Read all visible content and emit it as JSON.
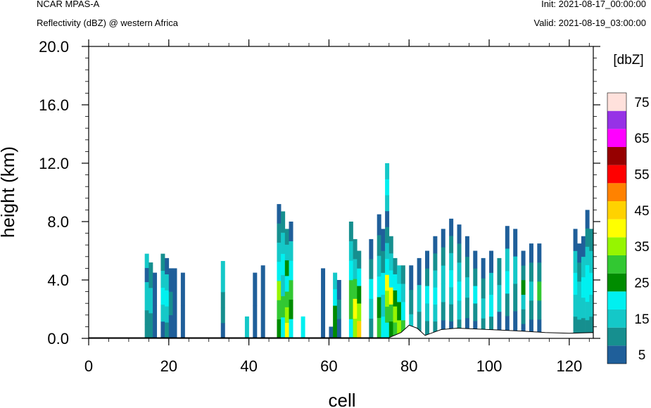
{
  "header": {
    "model": "NCAR MPAS-A",
    "field": "Reflectivity (dBZ) @ western Africa",
    "init": "Init: 2021-08-17_00:00:00",
    "valid": "Valid: 2021-08-19_03:00:00"
  },
  "chart_data": {
    "type": "heatmap",
    "xlabel": "cell",
    "ylabel": "height (km)",
    "xlim": [
      0,
      126
    ],
    "ylim": [
      0,
      20
    ],
    "xticks": [
      "0",
      "20",
      "40",
      "60",
      "80",
      "100",
      "120"
    ],
    "yticks": [
      "0.0",
      "4.0",
      "8.0",
      "12.0",
      "16.0",
      "20.0"
    ],
    "colorbar": {
      "unit": "[dbZ]",
      "labels": [
        "5",
        "15",
        "25",
        "35",
        "45",
        "55",
        "65",
        "75"
      ],
      "colors": [
        "#1f5f9a",
        "#168f8f",
        "#14c8c8",
        "#00f0f0",
        "#008c00",
        "#32c832",
        "#96f500",
        "#ffff00",
        "#ffd200",
        "#ff8200",
        "#ff0000",
        "#960000",
        "#ff00ff",
        "#9632e6",
        "#ffe1dc"
      ]
    },
    "columns": [
      {
        "x": 14,
        "top": 5.8,
        "lev": [
          1,
          1,
          2,
          2,
          0,
          2
        ]
      },
      {
        "x": 15,
        "top": 5.2,
        "lev": [
          1,
          2,
          1
        ]
      },
      {
        "x": 16,
        "top": 4.5,
        "lev": [
          0,
          0
        ]
      },
      {
        "x": 18,
        "top": 5.8,
        "lev": [
          0,
          2,
          3,
          2,
          1
        ]
      },
      {
        "x": 19,
        "top": 5.5,
        "lev": [
          1,
          2,
          3,
          2,
          0
        ]
      },
      {
        "x": 20,
        "top": 4.8,
        "lev": [
          0,
          1,
          0
        ]
      },
      {
        "x": 21,
        "top": 4.8,
        "lev": [
          0,
          0
        ]
      },
      {
        "x": 23,
        "top": 4.5,
        "lev": [
          0,
          0
        ]
      },
      {
        "x": 33,
        "top": 5.3,
        "lev": [
          0,
          1,
          1,
          2,
          2
        ]
      },
      {
        "x": 39,
        "top": 1.5,
        "lev": [
          2
        ]
      },
      {
        "x": 41,
        "top": 4.5,
        "lev": [
          0,
          0
        ]
      },
      {
        "x": 43,
        "top": 5.0,
        "lev": [
          0
        ]
      },
      {
        "x": 47,
        "top": 9.2,
        "lev": [
          4,
          5,
          6,
          3,
          2,
          1,
          0
        ]
      },
      {
        "x": 48,
        "top": 8.7,
        "lev": [
          3,
          5,
          2,
          3,
          2,
          1
        ]
      },
      {
        "x": 49,
        "top": 7.5,
        "lev": [
          7,
          6,
          5,
          3,
          4,
          2,
          1
        ]
      },
      {
        "x": 50,
        "top": 8.0,
        "lev": [
          3,
          4,
          5,
          3,
          2,
          0
        ]
      },
      {
        "x": 53,
        "top": 1.5,
        "lev": [
          3
        ]
      },
      {
        "x": 58,
        "top": 4.8,
        "lev": [
          0
        ]
      },
      {
        "x": 60,
        "top": 0.8,
        "lev": [
          0
        ]
      },
      {
        "x": 61,
        "top": 4.5,
        "lev": [
          4,
          4,
          3,
          2
        ]
      },
      {
        "x": 62,
        "top": 4.0,
        "lev": [
          0,
          1,
          0
        ]
      },
      {
        "x": 65,
        "top": 8.0,
        "lev": [
          3,
          5,
          5,
          3,
          2,
          1
        ]
      },
      {
        "x": 66,
        "top": 6.8,
        "lev": [
          6,
          7,
          5,
          2,
          1
        ]
      },
      {
        "x": 67,
        "top": 6.0,
        "lev": [
          8,
          6,
          4,
          3,
          1
        ]
      },
      {
        "x": 70,
        "top": 6.8,
        "lev": [
          1,
          2,
          3,
          1,
          0
        ]
      },
      {
        "x": 72,
        "top": 8.5,
        "lev": [
          5,
          4,
          3,
          2,
          1,
          0
        ]
      },
      {
        "x": 73,
        "top": 7.5,
        "lev": [
          3,
          2,
          3,
          1,
          0
        ]
      },
      {
        "x": 74,
        "top": 12.0,
        "lev": [
          3,
          5,
          6,
          7,
          3,
          2,
          1,
          0,
          2,
          3,
          2
        ]
      },
      {
        "x": 75,
        "top": 7.0,
        "lev": [
          4,
          5,
          7,
          3,
          2,
          1
        ]
      },
      {
        "x": 76,
        "top": 5.5,
        "lev": [
          5,
          6,
          4,
          3,
          1
        ]
      },
      {
        "x": 77,
        "top": 5.0,
        "lev": [
          6,
          4,
          3,
          2
        ]
      },
      {
        "x": 78,
        "top": 5.0,
        "lev": [
          5,
          3,
          2,
          1
        ]
      },
      {
        "x": 80,
        "top": 5.0,
        "lev": [
          2,
          1,
          0
        ]
      },
      {
        "x": 82,
        "top": 5.5,
        "lev": [
          1,
          2,
          0
        ]
      },
      {
        "x": 84,
        "top": 6.0,
        "lev": [
          1,
          2,
          3,
          1,
          0
        ]
      },
      {
        "x": 86,
        "top": 7.0,
        "lev": [
          1,
          2,
          3,
          2,
          1,
          0
        ]
      },
      {
        "x": 88,
        "top": 7.5,
        "lev": [
          0,
          1,
          2,
          2,
          1,
          0
        ]
      },
      {
        "x": 90,
        "top": 8.2,
        "lev": [
          0,
          1,
          2,
          3,
          2,
          1,
          0
        ]
      },
      {
        "x": 92,
        "top": 7.8,
        "lev": [
          1,
          2,
          3,
          2,
          1,
          0
        ]
      },
      {
        "x": 94,
        "top": 7.0,
        "lev": [
          0,
          1,
          2,
          1,
          0
        ]
      },
      {
        "x": 96,
        "top": 6.0,
        "lev": [
          0,
          1,
          3,
          1,
          0
        ]
      },
      {
        "x": 98,
        "top": 5.5,
        "lev": [
          1,
          2,
          1,
          0
        ]
      },
      {
        "x": 100,
        "top": 6.0,
        "lev": [
          1,
          3,
          2,
          0
        ]
      },
      {
        "x": 102,
        "top": 5.5,
        "lev": [
          0,
          2,
          1
        ]
      },
      {
        "x": 104,
        "top": 7.7,
        "lev": [
          0,
          1,
          3,
          2,
          0
        ]
      },
      {
        "x": 106,
        "top": 7.5,
        "lev": [
          0,
          1,
          2,
          0
        ]
      },
      {
        "x": 108,
        "top": 6.0,
        "lev": [
          0,
          1,
          2,
          4,
          1,
          0
        ]
      },
      {
        "x": 110,
        "top": 6.5,
        "lev": [
          0,
          1,
          2,
          1,
          0
        ]
      },
      {
        "x": 112,
        "top": 6.5,
        "lev": [
          0,
          1,
          5,
          1,
          0
        ]
      },
      {
        "x": 121,
        "top": 7.5,
        "lev": [
          1,
          2,
          3,
          2,
          0
        ]
      },
      {
        "x": 122,
        "top": 6.5,
        "lev": [
          1,
          2,
          2,
          1,
          0
        ]
      },
      {
        "x": 123,
        "top": 7.0,
        "lev": [
          1,
          2,
          3,
          2,
          0
        ]
      },
      {
        "x": 124,
        "top": 8.8,
        "lev": [
          1,
          2,
          3,
          3,
          2,
          1,
          0
        ]
      },
      {
        "x": 125,
        "top": 7.5,
        "lev": [
          1,
          2,
          3,
          2,
          1
        ]
      }
    ],
    "terrain": [
      [
        0,
        0.05
      ],
      [
        75,
        0.05
      ],
      [
        78,
        0.4
      ],
      [
        80,
        0.9
      ],
      [
        82,
        0.7
      ],
      [
        84,
        0.2
      ],
      [
        86,
        0.4
      ],
      [
        88,
        0.6
      ],
      [
        92,
        0.7
      ],
      [
        100,
        0.6
      ],
      [
        108,
        0.5
      ],
      [
        114,
        0.4
      ],
      [
        120,
        0.35
      ],
      [
        126,
        0.4
      ]
    ]
  }
}
